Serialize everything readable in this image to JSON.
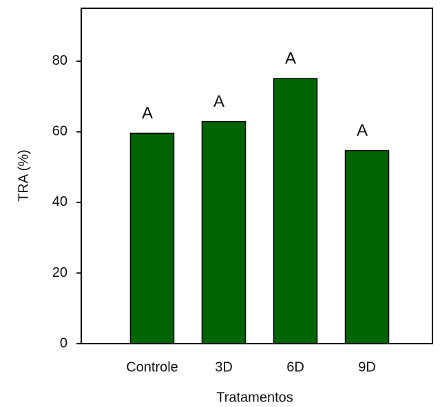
{
  "chart_data": {
    "type": "bar",
    "x_label": "Tratamentos",
    "y_label": "TRA (%)",
    "categories": [
      "Controle",
      "3D",
      "6D",
      "9D"
    ],
    "values": [
      59.6,
      62.9,
      75.1,
      54.7
    ],
    "annotations": [
      "A",
      "A",
      "A",
      "A"
    ],
    "color": "#006400",
    "ylim": [
      0,
      95
    ],
    "yticks": [
      0,
      20,
      40,
      60,
      80
    ]
  }
}
